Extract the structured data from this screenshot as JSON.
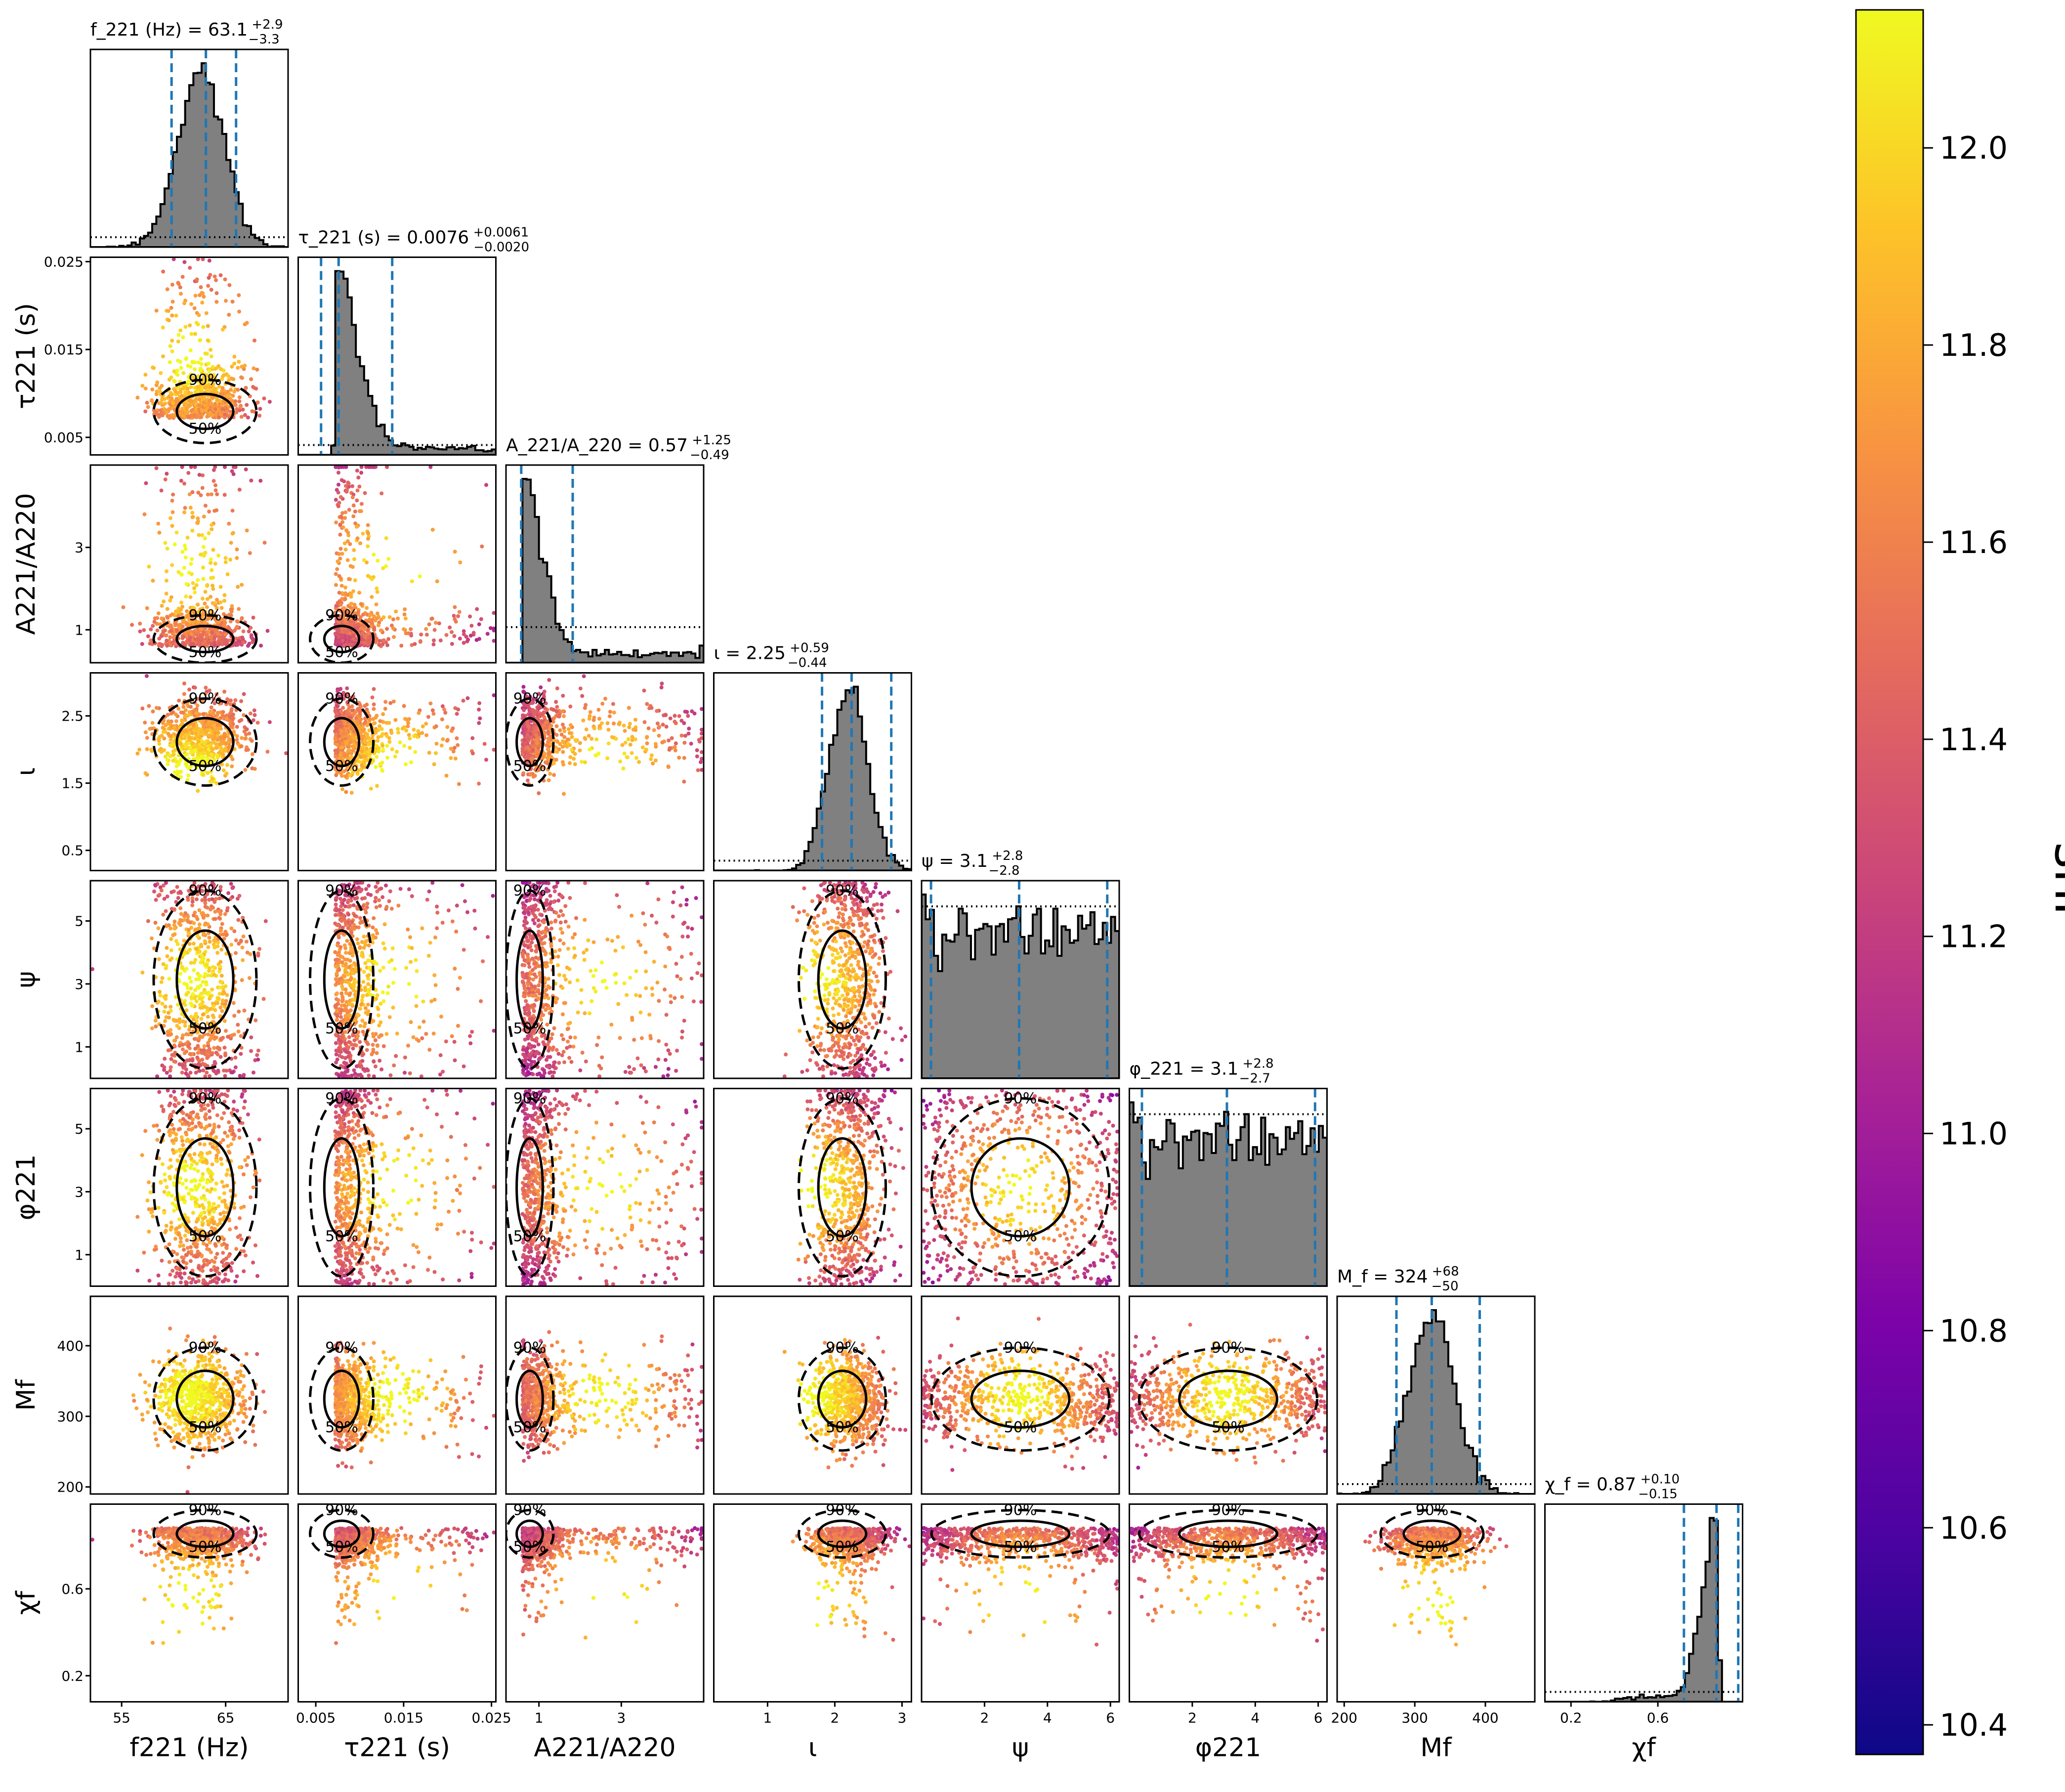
{
  "chart_data": {
    "type": "corner",
    "parameters": [
      {
        "key": "f221",
        "label": "f_221 (Hz)",
        "range": [
          52,
          71
        ],
        "ticks": [
          55,
          65
        ],
        "median": 63.1,
        "upper_err": 2.9,
        "lower_err": 3.3,
        "title": "f_221 (Hz) = 63.1",
        "title_sup": "+2.9",
        "title_sub": "−3.3"
      },
      {
        "key": "tau221",
        "label": "τ_221 (s)",
        "range": [
          0.003,
          0.0255
        ],
        "ticks": [
          0.005,
          0.015,
          0.025
        ],
        "median": 0.0076,
        "upper_err": 0.0061,
        "lower_err": 0.002,
        "title": "τ_221 (s) = 0.0076",
        "title_sup": "+0.0061",
        "title_sub": "−0.0020"
      },
      {
        "key": "A221_A220",
        "label": "A_221/A_220",
        "range": [
          0.2,
          5
        ],
        "ticks": [
          1,
          3
        ],
        "median": 0.57,
        "upper_err": 1.25,
        "lower_err": 0.49,
        "title": "A_221/A_220 = 0.57",
        "title_sup": "+1.25",
        "title_sub": "−0.49"
      },
      {
        "key": "iota",
        "label": "ι",
        "range": [
          0.2,
          3.14
        ],
        "ticks": [
          0.5,
          1.5,
          2.5
        ],
        "xticks": [
          1,
          2,
          3
        ],
        "median": 2.25,
        "upper_err": 0.59,
        "lower_err": 0.44,
        "title": "ι = 2.25",
        "title_sup": "+0.59",
        "title_sub": "−0.44"
      },
      {
        "key": "psi",
        "label": "ψ",
        "range": [
          0,
          6.28
        ],
        "ticks": [
          1,
          3,
          5
        ],
        "xticks": [
          2,
          4,
          6
        ],
        "median": 3.1,
        "upper_err": 2.8,
        "lower_err": 2.8,
        "title": "ψ = 3.1",
        "title_sup": "+2.8",
        "title_sub": "−2.8"
      },
      {
        "key": "phi221",
        "label": "φ_221",
        "range": [
          0,
          6.28
        ],
        "ticks": [
          1,
          3,
          5
        ],
        "xticks": [
          2,
          4,
          6
        ],
        "median": 3.1,
        "upper_err": 2.8,
        "lower_err": 2.7,
        "title": "φ_221 = 3.1",
        "title_sup": "+2.8",
        "title_sub": "−2.7"
      },
      {
        "key": "Mf",
        "label": "M_f",
        "range": [
          190,
          470
        ],
        "ticks": [
          200,
          300,
          400
        ],
        "xticks": [
          200,
          300,
          400
        ],
        "median": 324,
        "upper_err": 68,
        "lower_err": 50,
        "title": "M_f = 324",
        "title_sup": "+68",
        "title_sub": "−50"
      },
      {
        "key": "chif",
        "label": "χ_f",
        "range": [
          0.08,
          0.99
        ],
        "ticks": [
          0.2,
          0.6
        ],
        "median": 0.87,
        "upper_err": 0.1,
        "lower_err": 0.15,
        "title": "χ_f = 0.87",
        "title_sup": "+0.10",
        "title_sub": "−0.15"
      }
    ],
    "axis_labels": [
      "f221 (Hz)",
      "τ221 (s)",
      "A221/A220",
      "ι",
      "ψ",
      "φ221",
      "Mf",
      "χf"
    ],
    "tick_labels": {
      "f221": [
        "55",
        "65"
      ],
      "tau221": [
        "0.005",
        "0.015",
        "0.025"
      ],
      "A221_A220": [
        "1",
        "3"
      ],
      "iota_y": [
        "0.5",
        "1.5",
        "2.5"
      ],
      "iota_x": [
        "1",
        "2",
        "3"
      ],
      "psi_y": [
        "1",
        "3",
        "5"
      ],
      "psi_x": [
        "2",
        "4",
        "6"
      ],
      "phi221_y": [
        "1",
        "3",
        "5"
      ],
      "phi221_x": [
        "2",
        "4",
        "6"
      ],
      "Mf": [
        "200",
        "300",
        "400"
      ],
      "chif": [
        "0.2",
        "0.6"
      ]
    },
    "contour_levels": [
      "50%",
      "90%"
    ],
    "colorbar": {
      "label": "snr",
      "cmap": "plasma",
      "range": [
        10.37,
        12.14
      ],
      "ticks": [
        "10.4",
        "10.6",
        "10.8",
        "11.0",
        "11.2",
        "11.4",
        "11.6",
        "11.8",
        "12.0"
      ],
      "tick_values": [
        10.4,
        10.6,
        10.8,
        11.0,
        11.2,
        11.4,
        11.6,
        11.8,
        12.0
      ]
    },
    "colors": {
      "histogram_fill": "#808080",
      "credible_lines": "#1f77b4",
      "prior_line": "#000000",
      "contour": "#000000"
    },
    "grid": false
  }
}
